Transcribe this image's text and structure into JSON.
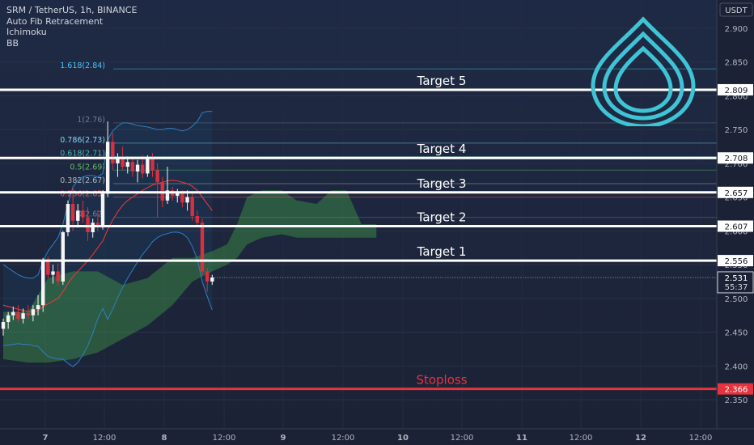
{
  "header": {
    "symbol_line": "SRM / TetherUS, 1h, BINANCE",
    "indicators": [
      "Auto Fib Retracement",
      "Ichimoku",
      "BB"
    ]
  },
  "price_axis": {
    "currency": "USDT",
    "ticks": [
      "2.900",
      "2.850",
      "2.800",
      "2.750",
      "2.700",
      "2.650",
      "2.600",
      "2.550",
      "2.500",
      "2.450",
      "2.400",
      "2.350"
    ]
  },
  "time_axis": {
    "labels": [
      "7",
      "12:00",
      "8",
      "12:00",
      "9",
      "12:00",
      "10",
      "12:00",
      "11",
      "12:00",
      "12",
      "12:00"
    ]
  },
  "current": {
    "price": "2.531",
    "countdown": "55:37"
  },
  "levels": [
    {
      "label": "Target 5",
      "price": 2.809,
      "tag": "2.809",
      "kind": "target"
    },
    {
      "label": "Target 4",
      "price": 2.708,
      "tag": "2.708",
      "kind": "target"
    },
    {
      "label": "Target 3",
      "price": 2.657,
      "tag": "2.657",
      "kind": "target"
    },
    {
      "label": "Target 2",
      "price": 2.607,
      "tag": "2.607",
      "kind": "target"
    },
    {
      "label": "Target 1",
      "price": 2.556,
      "tag": "2.556",
      "kind": "target"
    },
    {
      "label": "Stoploss",
      "price": 2.366,
      "tag": "2.366",
      "kind": "stop"
    }
  ],
  "fib": [
    {
      "label": "1.618(2.84)",
      "price": 2.84,
      "color": "#4fc3f7"
    },
    {
      "label": "1(2.76)",
      "price": 2.76,
      "color": "#787b86"
    },
    {
      "label": "0.786(2.73)",
      "price": 2.73,
      "color": "#81d4fa"
    },
    {
      "label": "0.618(2.71)",
      "price": 2.71,
      "color": "#4db6ac"
    },
    {
      "label": "0.5(2.69)",
      "price": 2.69,
      "color": "#66bb6a"
    },
    {
      "label": "0.382(2.67)",
      "price": 2.67,
      "color": "#b2b5be"
    },
    {
      "label": "0.236(2.65)",
      "price": 2.65,
      "color": "#ef5350"
    },
    {
      "label": "0(2.62)",
      "price": 2.62,
      "color": "#787b86"
    }
  ],
  "chart_data": {
    "type": "candlestick",
    "title": "SRM / TetherUS, 1h, BINANCE",
    "y_axis": {
      "unit": "USDT",
      "range": [
        2.33,
        2.935
      ],
      "position": "right"
    },
    "x_axis": {
      "labels": [
        "7",
        "12:00",
        "8",
        "12:00",
        "9",
        "12:00",
        "10",
        "12:00",
        "11",
        "12:00",
        "12",
        "12:00"
      ]
    },
    "candles": [
      {
        "o": 2.455,
        "h": 2.47,
        "l": 2.445,
        "c": 2.465
      },
      {
        "o": 2.465,
        "h": 2.48,
        "l": 2.455,
        "c": 2.475
      },
      {
        "o": 2.475,
        "h": 2.488,
        "l": 2.468,
        "c": 2.48
      },
      {
        "o": 2.48,
        "h": 2.49,
        "l": 2.465,
        "c": 2.47
      },
      {
        "o": 2.47,
        "h": 2.485,
        "l": 2.463,
        "c": 2.478
      },
      {
        "o": 2.478,
        "h": 2.49,
        "l": 2.47,
        "c": 2.475
      },
      {
        "o": 2.475,
        "h": 2.49,
        "l": 2.466,
        "c": 2.484
      },
      {
        "o": 2.484,
        "h": 2.505,
        "l": 2.475,
        "c": 2.49
      },
      {
        "o": 2.49,
        "h": 2.56,
        "l": 2.48,
        "c": 2.555
      },
      {
        "o": 2.555,
        "h": 2.562,
        "l": 2.53,
        "c": 2.535
      },
      {
        "o": 2.535,
        "h": 2.55,
        "l": 2.522,
        "c": 2.54
      },
      {
        "o": 2.54,
        "h": 2.552,
        "l": 2.518,
        "c": 2.525
      },
      {
        "o": 2.525,
        "h": 2.6,
        "l": 2.52,
        "c": 2.598
      },
      {
        "o": 2.598,
        "h": 2.645,
        "l": 2.592,
        "c": 2.64
      },
      {
        "o": 2.64,
        "h": 2.665,
        "l": 2.6,
        "c": 2.615
      },
      {
        "o": 2.615,
        "h": 2.64,
        "l": 2.605,
        "c": 2.63
      },
      {
        "o": 2.63,
        "h": 2.645,
        "l": 2.612,
        "c": 2.62
      },
      {
        "o": 2.62,
        "h": 2.635,
        "l": 2.585,
        "c": 2.598
      },
      {
        "o": 2.598,
        "h": 2.618,
        "l": 2.59,
        "c": 2.612
      },
      {
        "o": 2.612,
        "h": 2.63,
        "l": 2.6,
        "c": 2.608
      },
      {
        "o": 2.608,
        "h": 2.66,
        "l": 2.602,
        "c": 2.655
      },
      {
        "o": 2.655,
        "h": 2.762,
        "l": 2.65,
        "c": 2.732
      },
      {
        "o": 2.732,
        "h": 2.745,
        "l": 2.69,
        "c": 2.7
      },
      {
        "o": 2.7,
        "h": 2.715,
        "l": 2.68,
        "c": 2.708
      },
      {
        "o": 2.708,
        "h": 2.725,
        "l": 2.69,
        "c": 2.695
      },
      {
        "o": 2.695,
        "h": 2.71,
        "l": 2.685,
        "c": 2.702
      },
      {
        "o": 2.702,
        "h": 2.71,
        "l": 2.68,
        "c": 2.688
      },
      {
        "o": 2.688,
        "h": 2.705,
        "l": 2.672,
        "c": 2.698
      },
      {
        "o": 2.698,
        "h": 2.712,
        "l": 2.678,
        "c": 2.685
      },
      {
        "o": 2.685,
        "h": 2.712,
        "l": 2.68,
        "c": 2.708
      },
      {
        "o": 2.708,
        "h": 2.715,
        "l": 2.68,
        "c": 2.69
      },
      {
        "o": 2.69,
        "h": 2.7,
        "l": 2.62,
        "c": 2.672
      },
      {
        "o": 2.672,
        "h": 2.68,
        "l": 2.635,
        "c": 2.645
      },
      {
        "o": 2.645,
        "h": 2.695,
        "l": 2.64,
        "c": 2.66
      },
      {
        "o": 2.66,
        "h": 2.665,
        "l": 2.645,
        "c": 2.652
      },
      {
        "o": 2.652,
        "h": 2.662,
        "l": 2.642,
        "c": 2.656
      },
      {
        "o": 2.656,
        "h": 2.66,
        "l": 2.635,
        "c": 2.642
      },
      {
        "o": 2.642,
        "h": 2.66,
        "l": 2.63,
        "c": 2.65
      },
      {
        "o": 2.65,
        "h": 2.655,
        "l": 2.615,
        "c": 2.622
      },
      {
        "o": 2.622,
        "h": 2.63,
        "l": 2.605,
        "c": 2.612
      },
      {
        "o": 2.612,
        "h": 2.618,
        "l": 2.535,
        "c": 2.54
      },
      {
        "o": 2.54,
        "h": 2.545,
        "l": 2.51,
        "c": 2.525
      },
      {
        "o": 2.525,
        "h": 2.535,
        "l": 2.52,
        "c": 2.531
      }
    ],
    "series": [
      {
        "name": "BB",
        "role": "upper",
        "values": [
          2.55,
          2.545,
          2.54,
          2.535,
          2.532,
          2.53,
          2.53,
          2.535,
          2.555,
          2.57,
          2.58,
          2.59,
          2.61,
          2.64,
          2.665,
          2.675,
          2.68,
          2.682,
          2.682,
          2.68,
          2.685,
          2.735,
          2.748,
          2.755,
          2.76,
          2.76,
          2.758,
          2.756,
          2.755,
          2.754,
          2.752,
          2.75,
          2.75,
          2.752,
          2.752,
          2.75,
          2.748,
          2.75,
          2.755,
          2.762,
          2.775,
          2.777,
          2.777
        ]
      },
      {
        "name": "BB",
        "role": "basis",
        "values": [
          2.49,
          2.488,
          2.486,
          2.484,
          2.482,
          2.481,
          2.48,
          2.482,
          2.488,
          2.492,
          2.496,
          2.5,
          2.51,
          2.522,
          2.532,
          2.54,
          2.548,
          2.556,
          2.565,
          2.575,
          2.585,
          2.602,
          2.616,
          2.628,
          2.638,
          2.645,
          2.65,
          2.655,
          2.66,
          2.664,
          2.668,
          2.67,
          2.672,
          2.674,
          2.675,
          2.674,
          2.672,
          2.67,
          2.666,
          2.66,
          2.65,
          2.64,
          2.63
        ]
      },
      {
        "name": "BB",
        "role": "lower",
        "values": [
          2.43,
          2.431,
          2.432,
          2.433,
          2.432,
          2.432,
          2.43,
          2.429,
          2.421,
          2.414,
          2.412,
          2.41,
          2.41,
          2.404,
          2.399,
          2.405,
          2.416,
          2.43,
          2.448,
          2.47,
          2.485,
          2.469,
          2.484,
          2.501,
          2.516,
          2.53,
          2.542,
          2.554,
          2.565,
          2.574,
          2.584,
          2.59,
          2.594,
          2.596,
          2.598,
          2.598,
          2.596,
          2.59,
          2.577,
          2.558,
          2.525,
          2.503,
          2.483
        ]
      }
    ],
    "ichimoku_cloud": [
      {
        "x": 0,
        "top": 2.48,
        "bottom": 2.41
      },
      {
        "x": 5,
        "top": 2.48,
        "bottom": 2.405
      },
      {
        "x": 9,
        "top": 2.53,
        "bottom": 2.405
      },
      {
        "x": 14,
        "top": 2.54,
        "bottom": 2.41
      },
      {
        "x": 19,
        "top": 2.54,
        "bottom": 2.42
      },
      {
        "x": 24,
        "top": 2.52,
        "bottom": 2.44
      },
      {
        "x": 29,
        "top": 2.53,
        "bottom": 2.46
      },
      {
        "x": 34,
        "top": 2.56,
        "bottom": 2.49
      },
      {
        "x": 38,
        "top": 2.56,
        "bottom": 2.525
      },
      {
        "x": 42,
        "top": 2.57,
        "bottom": 2.54
      },
      {
        "x": 45,
        "top": 2.58,
        "bottom": 2.55
      },
      {
        "x": 47,
        "top": 2.61,
        "bottom": 2.56
      },
      {
        "x": 49,
        "top": 2.65,
        "bottom": 2.58
      },
      {
        "x": 52,
        "top": 2.66,
        "bottom": 2.59
      },
      {
        "x": 56,
        "top": 2.66,
        "bottom": 2.595
      },
      {
        "x": 59,
        "top": 2.645,
        "bottom": 2.59
      },
      {
        "x": 63,
        "top": 2.64,
        "bottom": 2.59
      },
      {
        "x": 66,
        "top": 2.66,
        "bottom": 2.59
      },
      {
        "x": 69,
        "top": 2.66,
        "bottom": 2.59
      },
      {
        "x": 72,
        "top": 2.61,
        "bottom": 2.59
      },
      {
        "x": 75,
        "top": 2.61,
        "bottom": 2.59
      }
    ]
  }
}
